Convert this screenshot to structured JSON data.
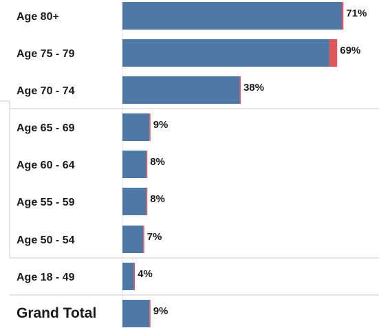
{
  "chart_data": {
    "type": "bar",
    "orientation": "horizontal",
    "categories": [
      "Age 80+",
      "Age 75 - 79",
      "Age 70 - 74",
      "Age 65 - 69",
      "Age 60 - 64",
      "Age 55 - 59",
      "Age 50 - 54",
      "Age 18 - 49",
      "Grand Total"
    ],
    "values": [
      71,
      69,
      38,
      9,
      8,
      8,
      7,
      4,
      9
    ],
    "value_labels": [
      "71%",
      "69%",
      "38%",
      "9%",
      "8%",
      "8%",
      "7%",
      "4%",
      "9%"
    ],
    "highlight_values": [
      0.5,
      2.5,
      0.3,
      0.3,
      0.3,
      0.3,
      0.3,
      0.3,
      0.3
    ],
    "xlim": [
      0,
      71.6
    ],
    "grid": false,
    "colors": {
      "bar": "#4e79a7",
      "highlight": "#e15759",
      "separator": "#c8c8c8"
    }
  }
}
